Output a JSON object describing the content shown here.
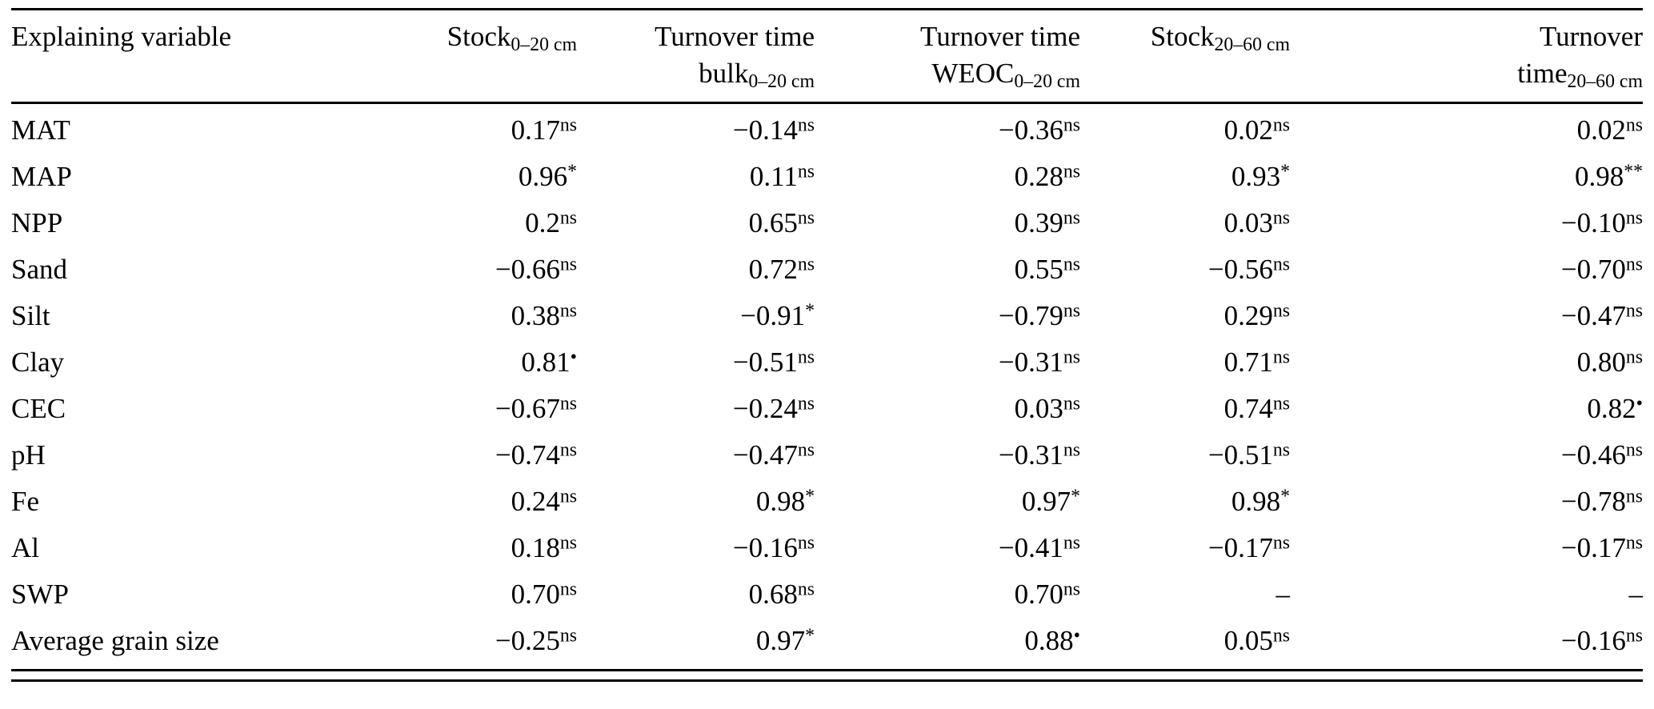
{
  "table": {
    "columns": [
      {
        "align": "left",
        "lines": [
          {
            "text": "Explaining variable",
            "sub": ""
          }
        ]
      },
      {
        "align": "right",
        "lines": [
          {
            "text": "Stock",
            "sub": "0–20 cm"
          }
        ]
      },
      {
        "align": "right",
        "lines": [
          {
            "text": "Turnover time",
            "sub": ""
          },
          {
            "text": "bulk",
            "sub": "0–20 cm"
          }
        ]
      },
      {
        "align": "right",
        "lines": [
          {
            "text": "Turnover time",
            "sub": ""
          },
          {
            "text": "WEOC",
            "sub": "0–20 cm"
          }
        ]
      },
      {
        "align": "right",
        "lines": [
          {
            "text": "Stock",
            "sub": "20–60 cm"
          }
        ]
      },
      {
        "align": "right",
        "lines": [
          {
            "text": "Turnover",
            "sub": ""
          },
          {
            "text": "time",
            "sub": "20–60 cm"
          }
        ]
      }
    ],
    "rows": [
      {
        "label": "MAT",
        "cells": [
          {
            "v": "0.17",
            "sup": "ns"
          },
          {
            "v": "−0.14",
            "sup": "ns"
          },
          {
            "v": "−0.36",
            "sup": "ns"
          },
          {
            "v": "0.02",
            "sup": "ns"
          },
          {
            "v": "0.02",
            "sup": "ns"
          }
        ]
      },
      {
        "label": "MAP",
        "cells": [
          {
            "v": "0.96",
            "sup": "*"
          },
          {
            "v": "0.11",
            "sup": "ns"
          },
          {
            "v": "0.28",
            "sup": "ns"
          },
          {
            "v": "0.93",
            "sup": "*"
          },
          {
            "v": "0.98",
            "sup": "**"
          }
        ]
      },
      {
        "label": "NPP",
        "cells": [
          {
            "v": "0.2",
            "sup": "ns"
          },
          {
            "v": "0.65",
            "sup": "ns"
          },
          {
            "v": "0.39",
            "sup": "ns"
          },
          {
            "v": "0.03",
            "sup": "ns"
          },
          {
            "v": "−0.10",
            "sup": "ns"
          }
        ]
      },
      {
        "label": "Sand",
        "cells": [
          {
            "v": "−0.66",
            "sup": "ns"
          },
          {
            "v": "0.72",
            "sup": "ns"
          },
          {
            "v": "0.55",
            "sup": "ns"
          },
          {
            "v": "−0.56",
            "sup": "ns"
          },
          {
            "v": "−0.70",
            "sup": "ns"
          }
        ]
      },
      {
        "label": "Silt",
        "cells": [
          {
            "v": "0.38",
            "sup": "ns"
          },
          {
            "v": "−0.91",
            "sup": "*"
          },
          {
            "v": "−0.79",
            "sup": "ns"
          },
          {
            "v": "0.29",
            "sup": "ns"
          },
          {
            "v": "−0.47",
            "sup": "ns"
          }
        ]
      },
      {
        "label": "Clay",
        "cells": [
          {
            "v": "0.81",
            "sup": "•"
          },
          {
            "v": "−0.51",
            "sup": "ns"
          },
          {
            "v": "−0.31",
            "sup": "ns"
          },
          {
            "v": "0.71",
            "sup": "ns"
          },
          {
            "v": "0.80",
            "sup": "ns"
          }
        ]
      },
      {
        "label": "CEC",
        "cells": [
          {
            "v": "−0.67",
            "sup": "ns"
          },
          {
            "v": "−0.24",
            "sup": "ns"
          },
          {
            "v": "0.03",
            "sup": "ns"
          },
          {
            "v": "0.74",
            "sup": "ns"
          },
          {
            "v": "0.82",
            "sup": "•"
          }
        ]
      },
      {
        "label": "pH",
        "cells": [
          {
            "v": "−0.74",
            "sup": "ns"
          },
          {
            "v": "−0.47",
            "sup": "ns"
          },
          {
            "v": "−0.31",
            "sup": "ns"
          },
          {
            "v": "−0.51",
            "sup": "ns"
          },
          {
            "v": "−0.46",
            "sup": "ns"
          }
        ]
      },
      {
        "label": "Fe",
        "cells": [
          {
            "v": "0.24",
            "sup": "ns"
          },
          {
            "v": "0.98",
            "sup": "*"
          },
          {
            "v": "0.97",
            "sup": "*"
          },
          {
            "v": "0.98",
            "sup": "*"
          },
          {
            "v": "−0.78",
            "sup": "ns"
          }
        ]
      },
      {
        "label": "Al",
        "cells": [
          {
            "v": "0.18",
            "sup": "ns"
          },
          {
            "v": "−0.16",
            "sup": "ns"
          },
          {
            "v": "−0.41",
            "sup": "ns"
          },
          {
            "v": "−0.17",
            "sup": "ns"
          },
          {
            "v": "−0.17",
            "sup": "ns"
          }
        ]
      },
      {
        "label": "SWP",
        "cells": [
          {
            "v": "0.70",
            "sup": "ns"
          },
          {
            "v": "0.68",
            "sup": "ns"
          },
          {
            "v": "0.70",
            "sup": "ns"
          },
          {
            "v": "–",
            "sup": ""
          },
          {
            "v": "–",
            "sup": ""
          }
        ]
      },
      {
        "label": "Average grain size",
        "cells": [
          {
            "v": "−0.25",
            "sup": "ns"
          },
          {
            "v": "0.97",
            "sup": "*"
          },
          {
            "v": "0.88",
            "sup": "•"
          },
          {
            "v": "0.05",
            "sup": "ns"
          },
          {
            "v": "−0.16",
            "sup": "ns"
          }
        ]
      }
    ]
  }
}
